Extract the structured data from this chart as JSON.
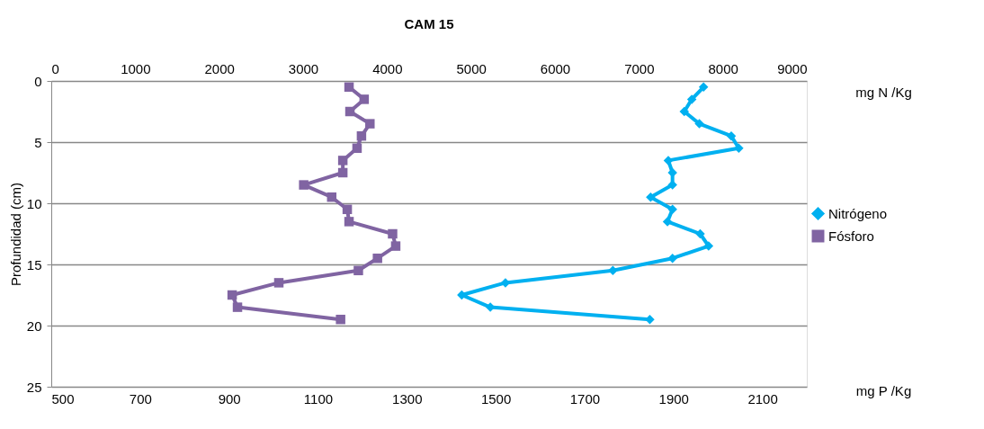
{
  "chart_data": {
    "type": "line",
    "title": "CAM 15",
    "xlabel": "mg P /Kg",
    "x2label": "mg N /Kg",
    "ylabel": "Profundidad (cm)",
    "series": [
      {
        "name": "Nitrógeno",
        "color": "#00b0f0",
        "marker": "diamond",
        "axis": "x2",
        "x": [
          7770,
          7630,
          7540,
          7720,
          8100,
          8190,
          7350,
          7400,
          7400,
          7140,
          7400,
          7340,
          7730,
          7830,
          7400,
          6690,
          5410,
          4890,
          5230,
          7130
        ],
        "values": [
          0.5,
          1.5,
          2.5,
          3.5,
          4.5,
          5.5,
          6.5,
          7.5,
          8.5,
          9.5,
          10.5,
          11.5,
          12.5,
          13.5,
          14.5,
          15.5,
          16.5,
          17.5,
          18.5,
          19.5
        ]
      },
      {
        "name": "Fósforo",
        "color": "#8064a2",
        "marker": "square",
        "x": [
          1170,
          1204,
          1172,
          1217,
          1198,
          1188,
          1156,
          1156,
          1068,
          1131,
          1166,
          1170,
          1268,
          1275,
          1234,
          1191,
          1012,
          907,
          919,
          1151
        ],
        "values": [
          0.5,
          1.5,
          2.5,
          3.5,
          4.5,
          5.5,
          6.5,
          7.5,
          8.5,
          9.5,
          10.5,
          11.5,
          12.5,
          13.5,
          14.5,
          15.5,
          16.5,
          17.5,
          18.5,
          19.5
        ]
      }
    ],
    "xlim": [
      500,
      2200
    ],
    "xticks": [
      500,
      700,
      900,
      1100,
      1300,
      1500,
      1700,
      1900,
      2100
    ],
    "x2lim": [
      0,
      9000
    ],
    "x2ticks": [
      0,
      1000,
      2000,
      3000,
      4000,
      5000,
      6000,
      7000,
      8000,
      9000
    ],
    "ylim": [
      25,
      0
    ],
    "yticks": [
      0,
      5,
      10,
      15,
      20,
      25
    ],
    "grid": "y",
    "legend": "right"
  }
}
